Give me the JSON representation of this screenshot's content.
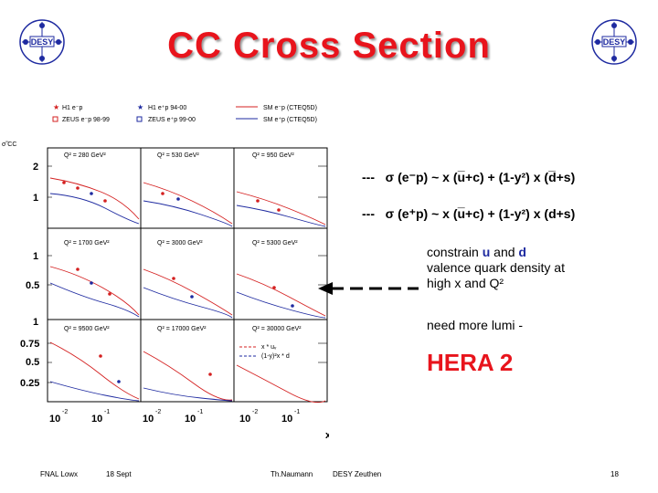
{
  "title": "CC   Cross Section",
  "logo_text": "DESY",
  "plot": {
    "legend": {
      "h1_em": "H1 e⁻p",
      "h1_ep": "H1 e⁺p 94-00",
      "sm_em": "SM e⁻p (CTEQ5D)",
      "zeus_em": "ZEUS e⁻p 98-99",
      "zeus_ep": "ZEUS e⁺p 99-00",
      "sm_ep": "SM e⁺p (CTEQ5D)"
    },
    "ylabel": "σ̃ CC",
    "q2_labels": [
      "Q² = 280 GeV²",
      "Q² = 530 GeV²",
      "Q² = 950 GeV²",
      "Q² = 1700 GeV²",
      "Q² = 3000 GeV²",
      "Q² = 5300 GeV²",
      "Q² = 9500 GeV²",
      "Q² = 17000 GeV²",
      "Q² = 30000 GeV²"
    ],
    "yticks_row1": [
      "2",
      "1"
    ],
    "yticks_row2": [
      "1",
      "0.5"
    ],
    "yticks_row3": [
      "1",
      "0.75",
      "0.5",
      "0.25"
    ],
    "xticks": [
      {
        "base": "10",
        "exp": "-2"
      },
      {
        "base": "10",
        "exp": "-1"
      },
      {
        "base": "10",
        "exp": "-2"
      },
      {
        "base": "10",
        "exp": "-1"
      },
      {
        "base": "10",
        "exp": "-2"
      },
      {
        "base": "10",
        "exp": "-1"
      }
    ],
    "xlabel": "x",
    "inset_legend": [
      "x * uᵥ",
      "(1-y)²x * d"
    ]
  },
  "formulas": {
    "dash": "---",
    "minus": {
      "sigma": "σ",
      "text": "(e⁻p) ~ x (u̅+c) + (1-y²) x (d̅+s)"
    },
    "plus": {
      "sigma": "σ",
      "text": "(e⁺p) ~ x (u̅+c) + (1-y²) x (d+s)"
    }
  },
  "notes": {
    "line1_prefix": "constrain ",
    "line1_u": "u",
    "line1_and": " and ",
    "line1_d": "d",
    "line2": "valence quark density at",
    "line3": "high x and Q²",
    "lumi": "need more lumi -",
    "hera": "HERA 2"
  },
  "footer": {
    "left1": "FNAL Lowx",
    "left2": "18 Sept",
    "author": "Th.Naumann",
    "institute": "DESY Zeuthen",
    "page": "18"
  },
  "colors": {
    "title": "#e8141c",
    "h1_red": "#d42020",
    "zeus_blue": "#1e2aa0",
    "arrow": "#000000"
  }
}
